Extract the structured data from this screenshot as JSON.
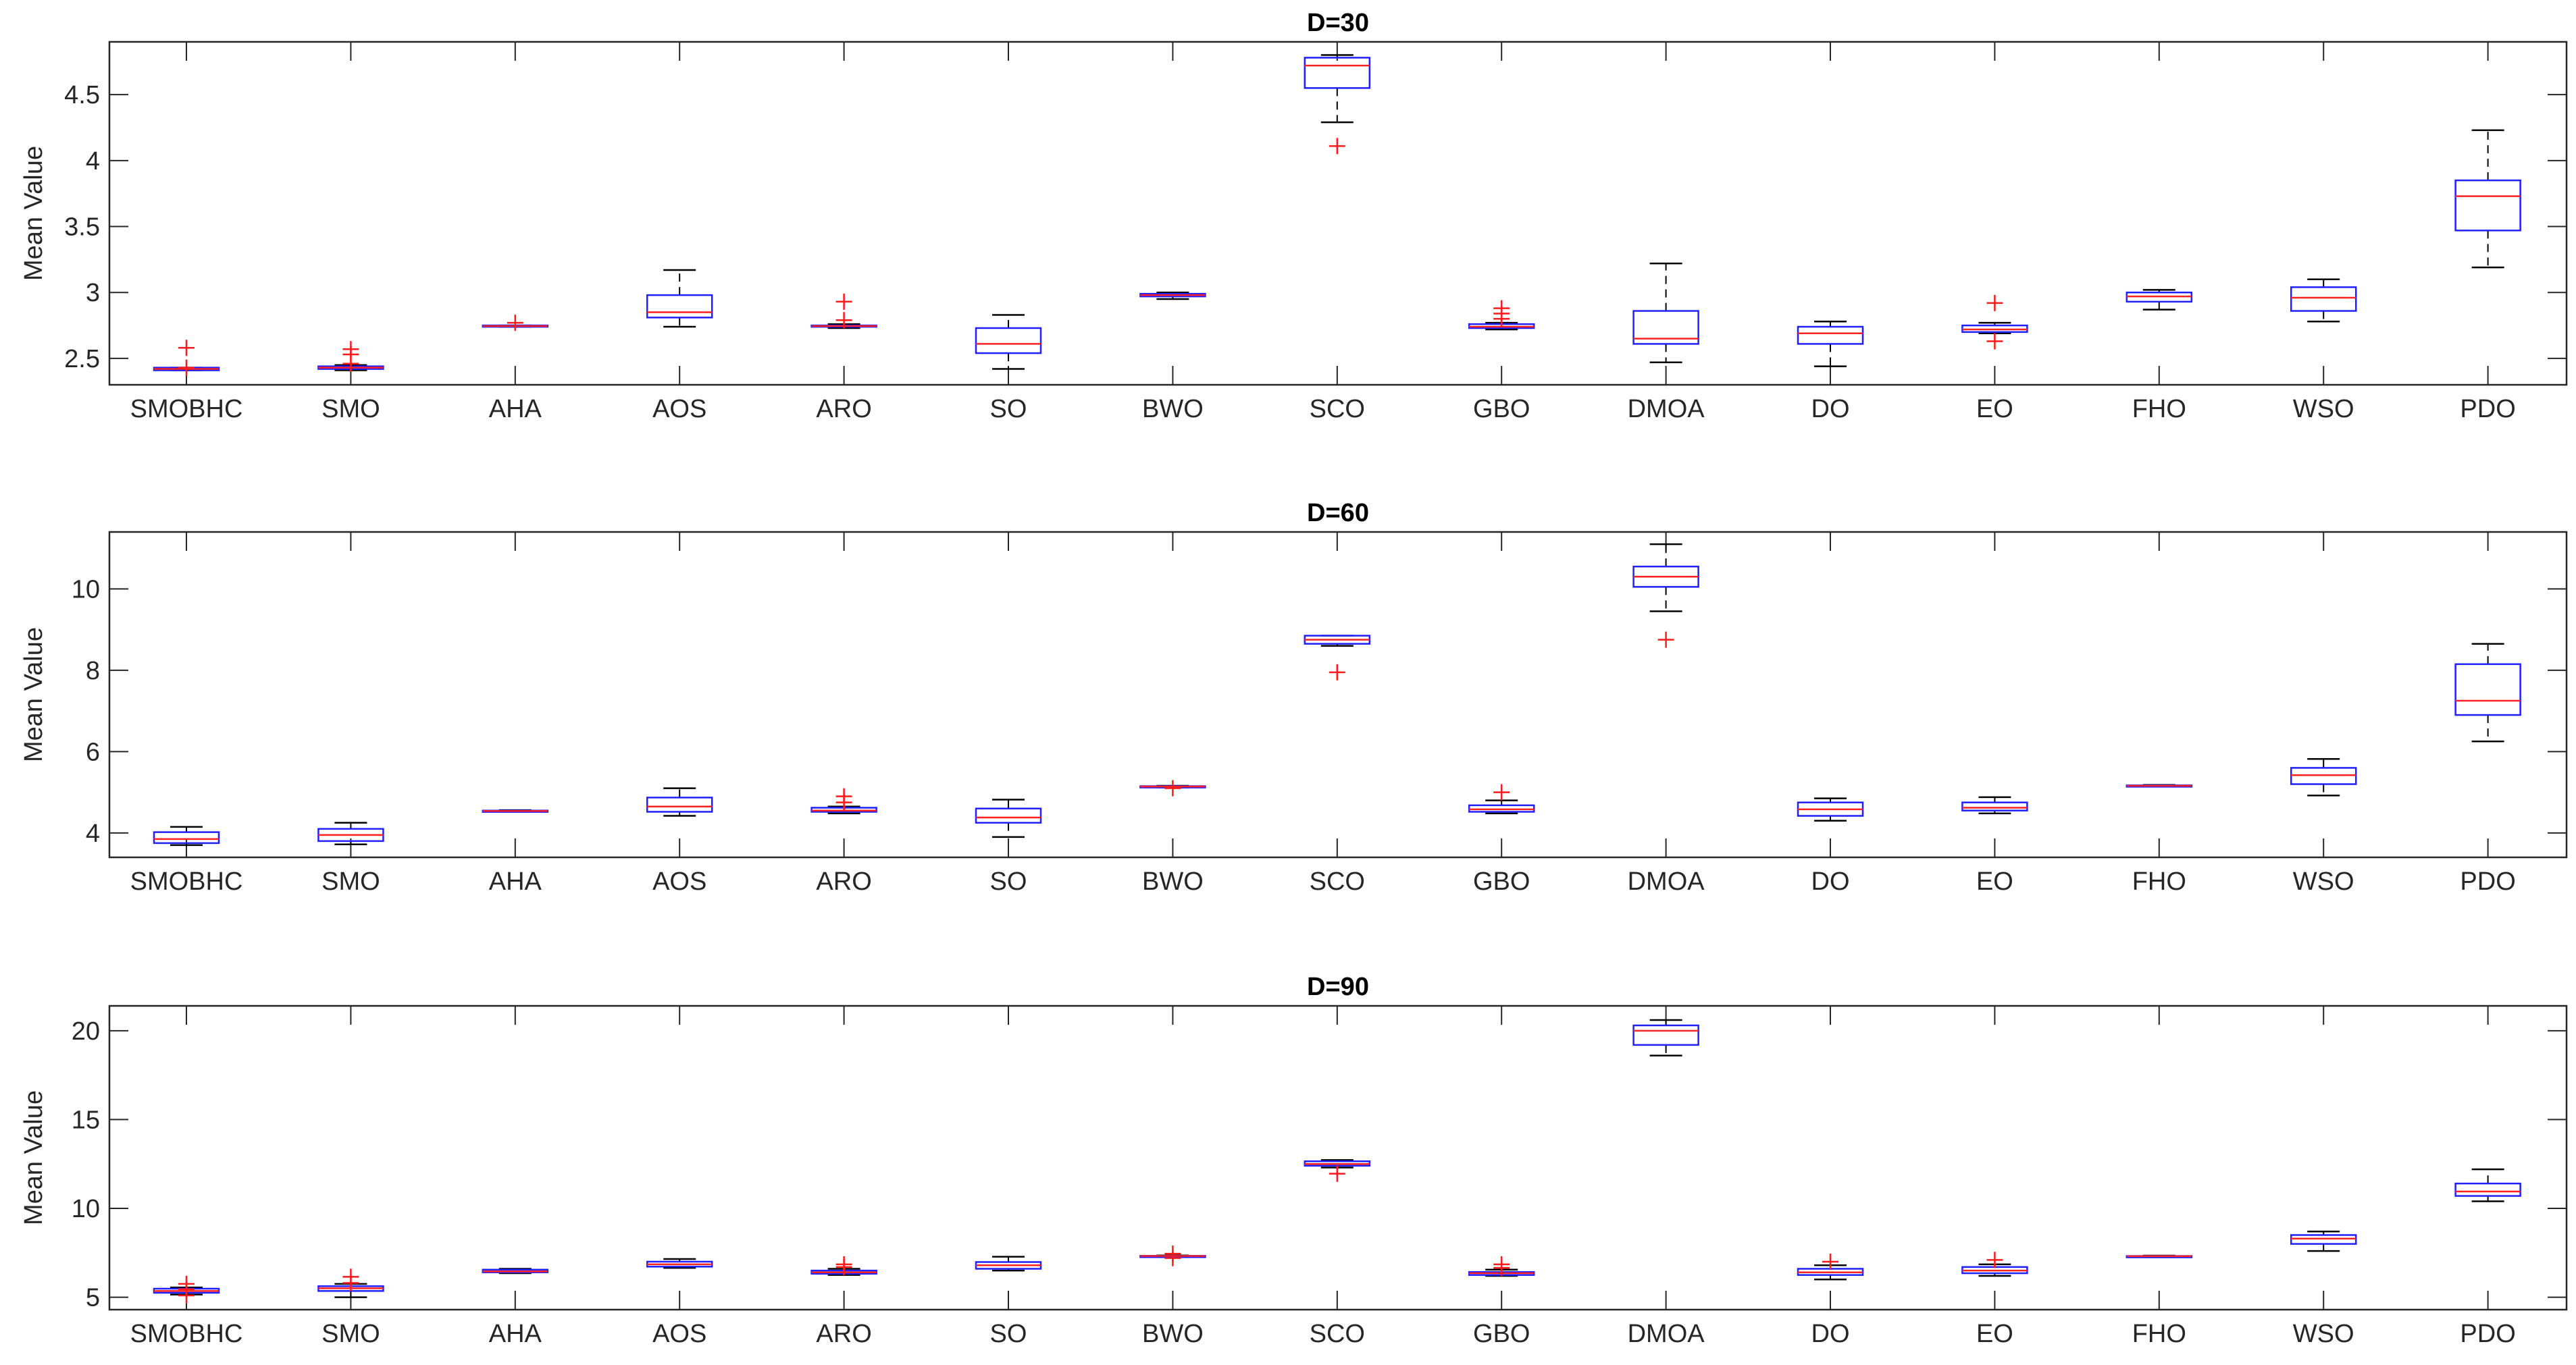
{
  "chart_data": [
    {
      "type": "box",
      "title": "D=30",
      "ylabel": "Mean Value",
      "xlabel": "",
      "ylim": [
        2.3,
        4.9
      ],
      "yticks": [
        2.5,
        3,
        3.5,
        4,
        4.5
      ],
      "yticklabels": [
        "2.5",
        "3",
        "3.5",
        "4",
        "4.5"
      ],
      "categories": [
        "SMOBHC",
        "SMO",
        "AHA",
        "AOS",
        "ARO",
        "SO",
        "BWO",
        "SCO",
        "GBO",
        "DMOA",
        "DO",
        "EO",
        "FHO",
        "WSO",
        "PDO"
      ],
      "boxes": [
        {
          "low": 2.41,
          "q1": 2.41,
          "median": 2.42,
          "q3": 2.43,
          "high": 2.43,
          "outliers": [
            2.58,
            2.43
          ]
        },
        {
          "low": 2.41,
          "q1": 2.42,
          "median": 2.43,
          "q3": 2.44,
          "high": 2.45,
          "outliers": [
            2.57,
            2.53,
            2.46
          ]
        },
        {
          "low": 2.74,
          "q1": 2.74,
          "median": 2.745,
          "q3": 2.75,
          "high": 2.75,
          "outliers": [
            2.77
          ]
        },
        {
          "low": 2.74,
          "q1": 2.81,
          "median": 2.85,
          "q3": 2.98,
          "high": 3.17,
          "outliers": []
        },
        {
          "low": 2.73,
          "q1": 2.74,
          "median": 2.745,
          "q3": 2.75,
          "high": 2.76,
          "outliers": [
            2.93,
            2.79
          ]
        },
        {
          "low": 2.42,
          "q1": 2.54,
          "median": 2.61,
          "q3": 2.73,
          "high": 2.83,
          "outliers": []
        },
        {
          "low": 2.95,
          "q1": 2.97,
          "median": 2.98,
          "q3": 2.99,
          "high": 3.0,
          "outliers": []
        },
        {
          "low": 4.29,
          "q1": 4.55,
          "median": 4.72,
          "q3": 4.78,
          "high": 4.8,
          "outliers": [
            4.11
          ]
        },
        {
          "low": 2.72,
          "q1": 2.73,
          "median": 2.74,
          "q3": 2.76,
          "high": 2.77,
          "outliers": [
            2.88,
            2.84,
            2.8
          ]
        },
        {
          "low": 2.47,
          "q1": 2.61,
          "median": 2.65,
          "q3": 2.86,
          "high": 3.22,
          "outliers": []
        },
        {
          "low": 2.44,
          "q1": 2.61,
          "median": 2.69,
          "q3": 2.74,
          "high": 2.78,
          "outliers": []
        },
        {
          "low": 2.69,
          "q1": 2.7,
          "median": 2.72,
          "q3": 2.75,
          "high": 2.77,
          "outliers": [
            2.92,
            2.63
          ]
        },
        {
          "low": 2.87,
          "q1": 2.93,
          "median": 2.97,
          "q3": 3.0,
          "high": 3.02,
          "outliers": []
        },
        {
          "low": 2.78,
          "q1": 2.86,
          "median": 2.96,
          "q3": 3.04,
          "high": 3.1,
          "outliers": []
        },
        {
          "low": 3.19,
          "q1": 3.47,
          "median": 3.73,
          "q3": 3.85,
          "high": 4.23,
          "outliers": []
        }
      ]
    },
    {
      "type": "box",
      "title": "D=60",
      "ylabel": "Mean Value",
      "xlabel": "",
      "ylim": [
        3.4,
        11.4
      ],
      "yticks": [
        4,
        6,
        8,
        10
      ],
      "yticklabels": [
        "4",
        "6",
        "8",
        "10"
      ],
      "categories": [
        "SMOBHC",
        "SMO",
        "AHA",
        "AOS",
        "ARO",
        "SO",
        "BWO",
        "SCO",
        "GBO",
        "DMOA",
        "DO",
        "EO",
        "FHO",
        "WSO",
        "PDO"
      ],
      "boxes": [
        {
          "low": 3.7,
          "q1": 3.75,
          "median": 3.85,
          "q3": 4.02,
          "high": 4.15,
          "outliers": []
        },
        {
          "low": 3.72,
          "q1": 3.8,
          "median": 3.95,
          "q3": 4.1,
          "high": 4.25,
          "outliers": []
        },
        {
          "low": 4.52,
          "q1": 4.53,
          "median": 4.54,
          "q3": 4.55,
          "high": 4.56,
          "outliers": []
        },
        {
          "low": 4.42,
          "q1": 4.52,
          "median": 4.65,
          "q3": 4.87,
          "high": 5.1,
          "outliers": []
        },
        {
          "low": 4.48,
          "q1": 4.52,
          "median": 4.55,
          "q3": 4.62,
          "high": 4.65,
          "outliers": [
            4.9,
            4.75
          ]
        },
        {
          "low": 3.9,
          "q1": 4.25,
          "median": 4.38,
          "q3": 4.6,
          "high": 4.82,
          "outliers": []
        },
        {
          "low": 5.12,
          "q1": 5.13,
          "median": 5.14,
          "q3": 5.15,
          "high": 5.16,
          "outliers": [
            5.1
          ]
        },
        {
          "low": 8.6,
          "q1": 8.65,
          "median": 8.75,
          "q3": 8.85,
          "high": 8.85,
          "outliers": [
            7.95
          ]
        },
        {
          "low": 4.48,
          "q1": 4.52,
          "median": 4.58,
          "q3": 4.68,
          "high": 4.8,
          "outliers": [
            5.0
          ]
        },
        {
          "low": 9.45,
          "q1": 10.05,
          "median": 10.3,
          "q3": 10.55,
          "high": 11.1,
          "outliers": [
            8.75
          ]
        },
        {
          "low": 4.3,
          "q1": 4.42,
          "median": 4.58,
          "q3": 4.75,
          "high": 4.85,
          "outliers": []
        },
        {
          "low": 4.48,
          "q1": 4.55,
          "median": 4.62,
          "q3": 4.75,
          "high": 4.88,
          "outliers": []
        },
        {
          "low": 5.14,
          "q1": 5.15,
          "median": 5.16,
          "q3": 5.17,
          "high": 5.18,
          "outliers": []
        },
        {
          "low": 4.92,
          "q1": 5.2,
          "median": 5.42,
          "q3": 5.6,
          "high": 5.82,
          "outliers": []
        },
        {
          "low": 6.25,
          "q1": 6.9,
          "median": 7.25,
          "q3": 8.15,
          "high": 8.65,
          "outliers": []
        }
      ]
    },
    {
      "type": "box",
      "title": "D=90",
      "ylabel": "Mean Value",
      "xlabel": "",
      "ylim": [
        4.3,
        21.4
      ],
      "yticks": [
        5,
        10,
        15,
        20
      ],
      "yticklabels": [
        "5",
        "10",
        "15",
        "20"
      ],
      "categories": [
        "SMOBHC",
        "SMO",
        "AHA",
        "AOS",
        "ARO",
        "SO",
        "BWO",
        "SCO",
        "GBO",
        "DMOA",
        "DO",
        "EO",
        "FHO",
        "WSO",
        "PDO"
      ],
      "boxes": [
        {
          "low": 5.15,
          "q1": 5.25,
          "median": 5.35,
          "q3": 5.48,
          "high": 5.55,
          "outliers": [
            5.75,
            5.45,
            5.1
          ]
        },
        {
          "low": 5.0,
          "q1": 5.35,
          "median": 5.5,
          "q3": 5.62,
          "high": 5.75,
          "outliers": [
            6.15,
            5.8
          ]
        },
        {
          "low": 6.35,
          "q1": 6.4,
          "median": 6.45,
          "q3": 6.55,
          "high": 6.6,
          "outliers": []
        },
        {
          "low": 6.65,
          "q1": 6.72,
          "median": 6.85,
          "q3": 7.0,
          "high": 7.15,
          "outliers": []
        },
        {
          "low": 6.25,
          "q1": 6.32,
          "median": 6.4,
          "q3": 6.5,
          "high": 6.6,
          "outliers": [
            6.85,
            6.7
          ]
        },
        {
          "low": 6.5,
          "q1": 6.6,
          "median": 6.8,
          "q3": 6.98,
          "high": 7.28,
          "outliers": []
        },
        {
          "low": 7.28,
          "q1": 7.3,
          "median": 7.32,
          "q3": 7.33,
          "high": 7.35,
          "outliers": [
            7.45,
            7.2
          ]
        },
        {
          "low": 12.3,
          "q1": 12.4,
          "median": 12.5,
          "q3": 12.65,
          "high": 12.72,
          "outliers": [
            11.95
          ]
        },
        {
          "low": 6.2,
          "q1": 6.25,
          "median": 6.35,
          "q3": 6.42,
          "high": 6.55,
          "outliers": [
            6.85,
            6.65
          ]
        },
        {
          "low": 18.6,
          "q1": 19.2,
          "median": 20.0,
          "q3": 20.3,
          "high": 20.6,
          "outliers": []
        },
        {
          "low": 6.0,
          "q1": 6.25,
          "median": 6.4,
          "q3": 6.6,
          "high": 6.8,
          "outliers": [
            7.0
          ]
        },
        {
          "low": 6.2,
          "q1": 6.35,
          "median": 6.5,
          "q3": 6.7,
          "high": 6.85,
          "outliers": [
            7.1
          ]
        },
        {
          "low": 7.28,
          "q1": 7.3,
          "median": 7.31,
          "q3": 7.32,
          "high": 7.34,
          "outliers": []
        },
        {
          "low": 7.6,
          "q1": 8.0,
          "median": 8.3,
          "q3": 8.5,
          "high": 8.7,
          "outliers": []
        },
        {
          "low": 10.4,
          "q1": 10.7,
          "median": 10.95,
          "q3": 11.4,
          "high": 12.2,
          "outliers": []
        }
      ]
    }
  ],
  "style": {
    "box_color": "#1f1fff",
    "median_color": "#ff2020",
    "whisker_color": "#000000",
    "outlier_color": "#ff1a1a",
    "axis_color": "#262626"
  }
}
